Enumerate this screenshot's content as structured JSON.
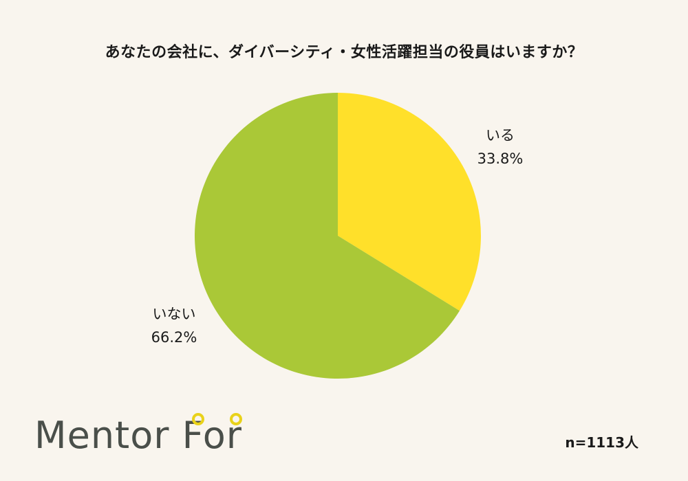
{
  "chart_data": {
    "type": "pie",
    "title": "あなたの会社に、ダイバーシティ・女性活躍担当の役員はいますか？",
    "categories": [
      "いる",
      "いない"
    ],
    "values": [
      33.8,
      66.2
    ],
    "value_labels": [
      "33.8%",
      "66.2%"
    ],
    "colors": [
      "#ffe02a",
      "#aac837"
    ],
    "start_angle": "12 o'clock",
    "direction": "clockwise",
    "sample_size": "n=1113人"
  },
  "logo": {
    "text": "Mentor For",
    "text_color": "#4a4f4a",
    "accent_color": "#e9d21a"
  }
}
